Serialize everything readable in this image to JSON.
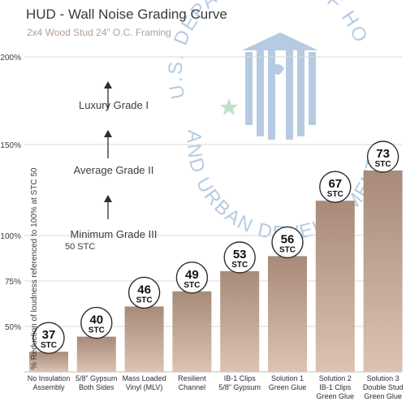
{
  "title": "HUD - Wall Noise Grading Curve",
  "subtitle": "2x4 Wood Stud 24” O.C. Framing",
  "chart_data": {
    "type": "bar",
    "title": "HUD - Wall Noise Grading Curve",
    "subtitle": "2x4 Wood Stud 24” O.C. Framing",
    "ylabel": "% Reduction of loudness referenced to 100% at STC 50",
    "xlabel": "",
    "yticks": [
      "50%",
      "75%",
      "100%",
      "150%",
      "200%"
    ],
    "categories": [
      [
        "No Insulation",
        "Assembly"
      ],
      [
        "5/8” Gypsum",
        "Both Sides"
      ],
      [
        "Mass Loaded",
        "Vinyl (MLV)"
      ],
      [
        "Resilient",
        "Channel"
      ],
      [
        "IB-1 Clips",
        "5/8” Gypsum"
      ],
      [
        "Solution 1",
        "Green Glue"
      ],
      [
        "Solution 2",
        "IB-1 Clips",
        "Green Glue"
      ],
      [
        "Solution 3",
        "Double Stud",
        "Green Glue"
      ]
    ],
    "values": [
      37,
      40,
      46,
      49,
      53,
      56,
      67,
      73
    ],
    "value_suffix": "STC",
    "grades": [
      {
        "label": "Luxury Grade I",
        "sublabel": ""
      },
      {
        "label": "Average Grade II",
        "sublabel": ""
      },
      {
        "label": "Minimum Grade III",
        "sublabel": "50 STC"
      }
    ],
    "grid": true,
    "bar_color_top": "#a88a79",
    "bar_color_bottom": "#dcc3b3"
  },
  "watermark": {
    "text_top": "U.S. DEPARTMENT OF HOUSING",
    "text_bottom": "AND URBAN DEVELOPMENT",
    "color": "#1f5fa6",
    "star_color": "#3aa35a"
  }
}
